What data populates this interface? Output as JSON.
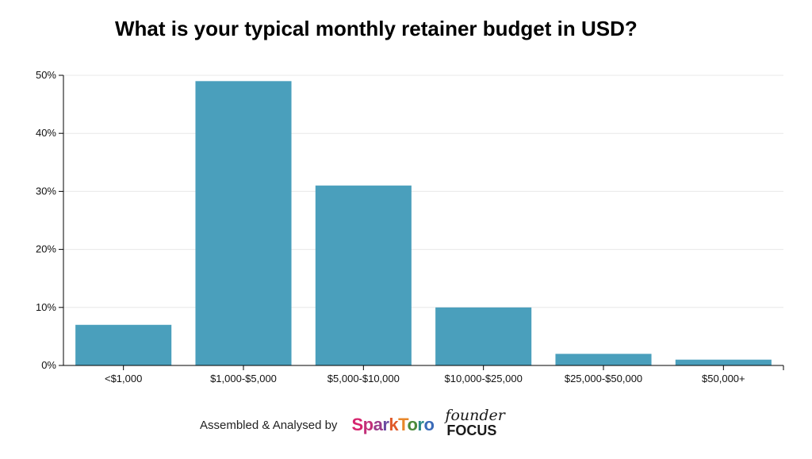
{
  "chart_data": {
    "type": "bar",
    "title": "What is your typical monthly retainer budget in USD?",
    "categories": [
      "<$1,000",
      "$1,000-$5,000",
      "$5,000-$10,000",
      "$10,000-$25,000",
      "$25,000-$50,000",
      "$50,000+"
    ],
    "values": [
      7,
      49,
      31,
      10,
      2,
      1
    ],
    "value_unit": "%",
    "ylim": [
      0,
      50
    ],
    "yticks": [
      "0%",
      "10%",
      "20%",
      "30%",
      "40%",
      "50%"
    ],
    "ytick_values": [
      0,
      10,
      20,
      30,
      40,
      50
    ],
    "grid": true,
    "xlabel": "",
    "ylabel": "",
    "bar_color": "#4a9fbc"
  },
  "footer": {
    "text": "Assembled & Analysed by",
    "logo_sparktoro": "SparkToro",
    "logo_founder_top": "founder",
    "logo_founder_bottom": "FOCUS"
  }
}
